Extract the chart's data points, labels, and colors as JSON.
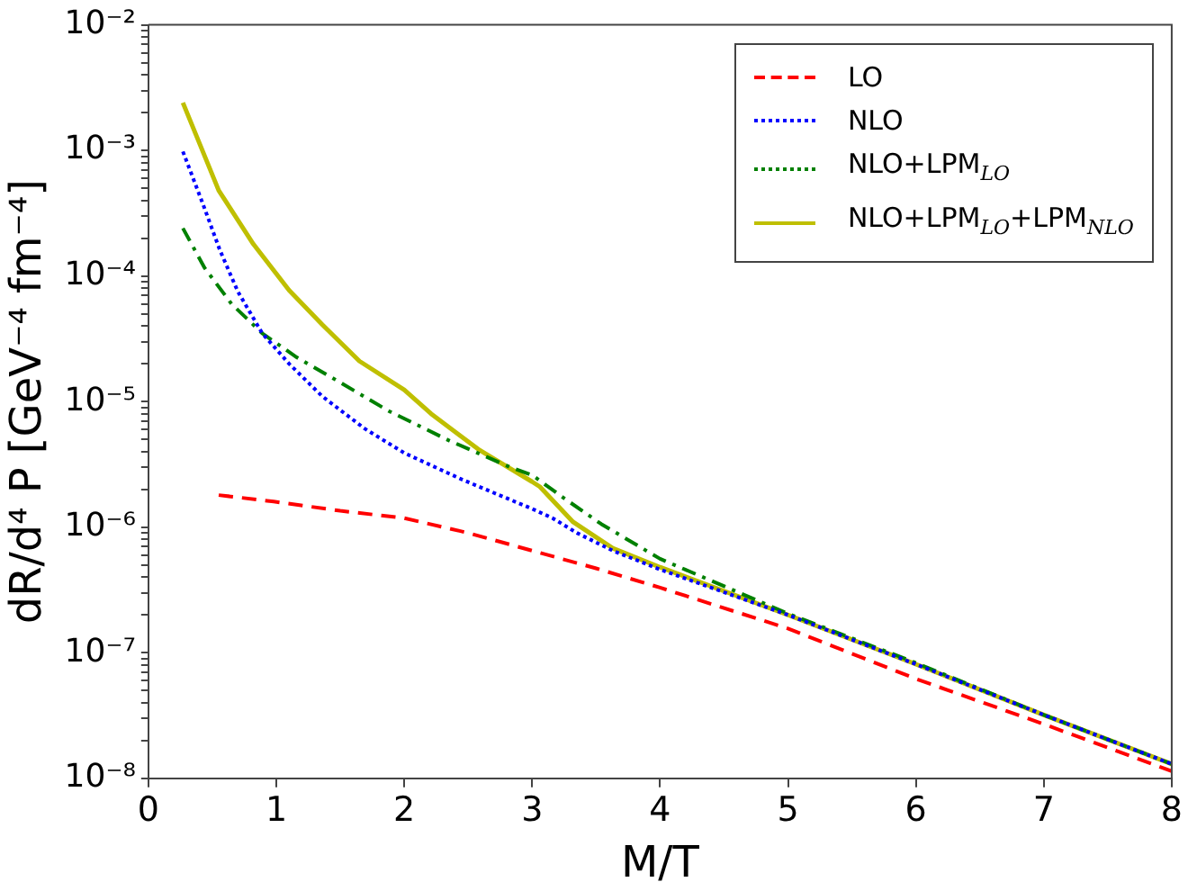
{
  "chart_data": {
    "type": "line",
    "xlabel": "M/T",
    "ylabel": "dR/d⁴ P [GeV⁻⁴ fm⁻⁴]",
    "log": "y",
    "grid": false,
    "legend": "top right",
    "marker": "none",
    "xlim": [
      0,
      8
    ],
    "xticks": [
      0,
      1,
      2,
      3,
      4,
      5,
      6,
      7,
      8
    ],
    "ylim": [
      1e-08,
      0.01
    ],
    "yticks": [
      {
        "value": 1e-08,
        "label": "10⁻⁸"
      },
      {
        "value": 2e-08,
        "label": null
      },
      {
        "value": 3e-08,
        "label": null
      },
      {
        "value": 4e-08,
        "label": null
      },
      {
        "value": 5e-08,
        "label": null
      },
      {
        "value": 6e-08,
        "label": null
      },
      {
        "value": 7e-08,
        "label": null
      },
      {
        "value": 8e-08,
        "label": null
      },
      {
        "value": 9e-08,
        "label": null
      },
      {
        "value": 1e-07,
        "label": "10⁻⁷"
      },
      {
        "value": 2e-07,
        "label": null
      },
      {
        "value": 3e-07,
        "label": null
      },
      {
        "value": 4e-07,
        "label": null
      },
      {
        "value": 5e-07,
        "label": null
      },
      {
        "value": 6e-07,
        "label": null
      },
      {
        "value": 7e-07,
        "label": null
      },
      {
        "value": 8e-07,
        "label": null
      },
      {
        "value": 9e-07,
        "label": null
      },
      {
        "value": 1e-06,
        "label": "10⁻⁶"
      },
      {
        "value": 2e-06,
        "label": null
      },
      {
        "value": 3e-06,
        "label": null
      },
      {
        "value": 4e-06,
        "label": null
      },
      {
        "value": 5e-06,
        "label": null
      },
      {
        "value": 6e-06,
        "label": null
      },
      {
        "value": 7e-06,
        "label": null
      },
      {
        "value": 8e-06,
        "label": null
      },
      {
        "value": 9e-06,
        "label": null
      },
      {
        "value": 1e-05,
        "label": "10⁻⁵"
      },
      {
        "value": 2e-05,
        "label": null
      },
      {
        "value": 3e-05,
        "label": null
      },
      {
        "value": 4e-05,
        "label": null
      },
      {
        "value": 5e-05,
        "label": null
      },
      {
        "value": 6e-05,
        "label": null
      },
      {
        "value": 7e-05,
        "label": null
      },
      {
        "value": 8e-05,
        "label": null
      },
      {
        "value": 9e-05,
        "label": null
      },
      {
        "value": 0.0001,
        "label": "10⁻⁴"
      },
      {
        "value": 0.0002,
        "label": null
      },
      {
        "value": 0.0003,
        "label": null
      },
      {
        "value": 0.0004,
        "label": null
      },
      {
        "value": 0.0005,
        "label": null
      },
      {
        "value": 0.0006,
        "label": null
      },
      {
        "value": 0.0007,
        "label": null
      },
      {
        "value": 0.0008,
        "label": null
      },
      {
        "value": 0.0009,
        "label": null
      },
      {
        "value": 0.001,
        "label": "10⁻³"
      },
      {
        "value": 0.002,
        "label": null
      },
      {
        "value": 0.003,
        "label": null
      },
      {
        "value": 0.004,
        "label": null
      },
      {
        "value": 0.005,
        "label": null
      },
      {
        "value": 0.006,
        "label": null
      },
      {
        "value": 0.007,
        "label": null
      },
      {
        "value": 0.008,
        "label": null
      },
      {
        "value": 0.009,
        "label": null
      },
      {
        "value": 0.01,
        "label": "10⁻²"
      }
    ],
    "series": [
      {
        "name": "LO",
        "color": "#ff0000",
        "line_style": "dashed",
        "x": [
          0.55,
          0.98,
          1.5,
          2.0,
          2.5,
          3.0,
          3.5,
          4.0,
          5,
          6,
          7,
          8
        ],
        "values": [
          1.8e-06,
          1.6e-06,
          1.35e-06,
          1.18e-06,
          9e-07,
          6.5e-07,
          4.7e-07,
          3.3e-07,
          1.56e-07,
          6.2e-08,
          2.7e-08,
          1.14e-08
        ]
      },
      {
        "name": "NLO",
        "color": "#0000ff",
        "line_style": "dotted",
        "x": [
          0.27,
          0.42,
          0.56,
          0.7,
          0.89,
          1.1,
          1.36,
          1.69,
          2.0,
          2.45,
          3.0,
          3.16,
          3.35,
          3.63,
          4.0,
          5,
          6,
          7,
          8
        ],
        "values": [
          0.00098,
          0.00039,
          0.00016,
          7.5e-05,
          3.5e-05,
          2e-05,
          1.1e-05,
          6.1e-06,
          3.9e-06,
          2.4e-06,
          1.4e-06,
          1.18e-06,
          9e-07,
          6.5e-07,
          4.6e-07,
          2e-07,
          8.1e-08,
          3.2e-08,
          1.3e-08
        ]
      },
      {
        "name": "NLO+LPM$_{LO}$",
        "color": "#008000",
        "line_style": "dashdot",
        "x": [
          0.27,
          0.44,
          0.65,
          0.89,
          1.16,
          1.46,
          1.88,
          2.35,
          2.83,
          3.0,
          3.25,
          3.54,
          4.0,
          5,
          6,
          7,
          8
        ],
        "values": [
          0.00024,
          0.000116,
          6e-05,
          3.5e-05,
          2.25e-05,
          1.5e-05,
          8.4e-06,
          4.9e-06,
          3e-06,
          2.6e-06,
          1.7e-06,
          1.06e-06,
          5.6e-07,
          2.05e-07,
          8.3e-08,
          3.2e-08,
          1.3e-08
        ]
      },
      {
        "name": "NLO+LPM$_{LO}$+LPM$_{NLO}$",
        "color": "#bfbf00",
        "line_style": "solid",
        "x": [
          0.27,
          0.55,
          0.82,
          1.1,
          1.36,
          1.65,
          2.0,
          2.21,
          2.59,
          3.0,
          3.06,
          3.32,
          3.63,
          4.0,
          5,
          6,
          7,
          8
        ],
        "values": [
          0.0024,
          0.00048,
          0.00018,
          7.7e-05,
          4.1e-05,
          2.1e-05,
          1.24e-05,
          8e-06,
          4.1e-06,
          2.3e-06,
          2.1e-06,
          1.1e-06,
          6.8e-07,
          4.8e-07,
          2e-07,
          8.1e-08,
          3.2e-08,
          1.3e-08
        ]
      }
    ]
  }
}
